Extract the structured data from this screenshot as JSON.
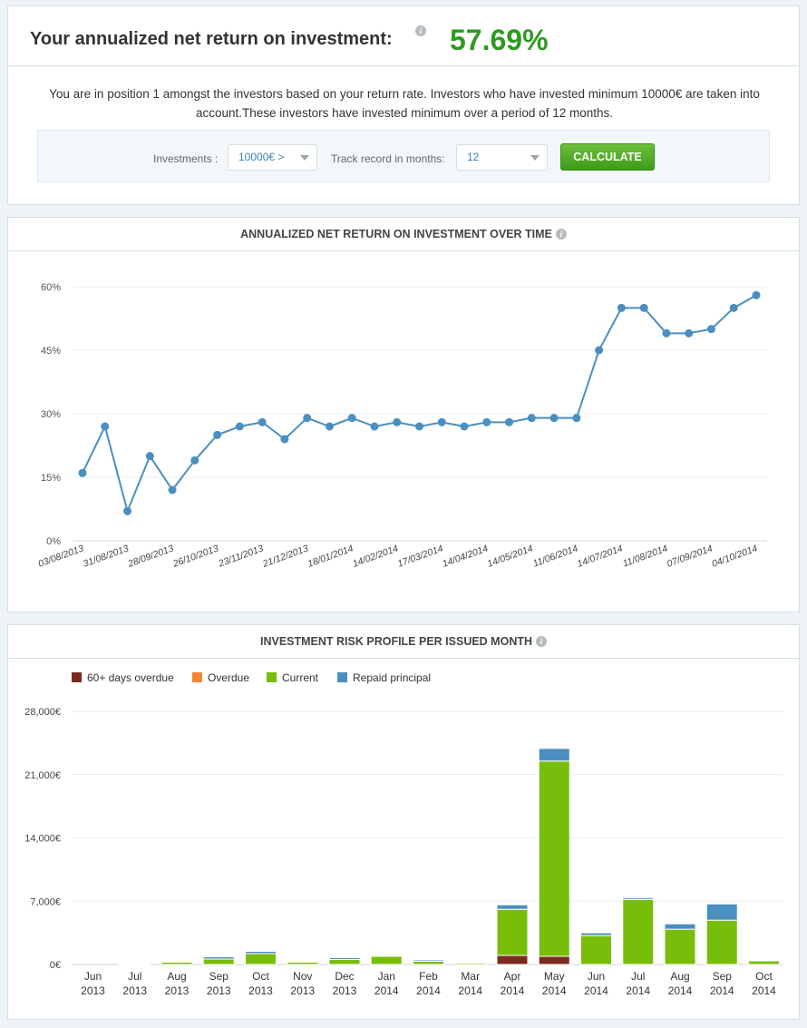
{
  "summary": {
    "title": "Your annualized net return on investment:",
    "info_icon": "info-icon",
    "return_value": "57.69%",
    "description": "You are in position 1 amongst the investors based on your return rate. Investors who have invested minimum 10000€ are taken into account.These investors have invested minimum over a period of 12 months.",
    "investments_label": "Investments :",
    "investments_value": "10000€ >",
    "track_label": "Track record in months:",
    "track_value": "12",
    "calculate_label": "CALCULATE"
  },
  "colors": {
    "line": "#4a8fc0",
    "green_value": "#2e9a1f",
    "overdue60": "#7b2a1e",
    "overdue": "#f58532",
    "current": "#77bd0a",
    "repaid": "#4a8fc0"
  },
  "chart_data": [
    {
      "type": "line",
      "title": "ANNUALIZED NET RETURN ON INVESTMENT OVER TIME",
      "y_ticks": [
        "0%",
        "15%",
        "30%",
        "45%",
        "60%"
      ],
      "ylim": [
        0,
        60
      ],
      "x_tick_labels": [
        "03/08/2013",
        "31/08/2013",
        "28/09/2013",
        "26/10/2013",
        "23/11/2013",
        "21/12/2013",
        "18/01/2014",
        "14/02/2014",
        "17/03/2014",
        "14/04/2014",
        "14/05/2014",
        "11/06/2014",
        "14/07/2014",
        "11/08/2014",
        "07/09/2014",
        "04/10/2014"
      ],
      "values": [
        16,
        27,
        7,
        20,
        12,
        19,
        25,
        27,
        28,
        24,
        29,
        27,
        29,
        27,
        28,
        27,
        28,
        27,
        28,
        28,
        29,
        29,
        29,
        45,
        55,
        55,
        49,
        49,
        50,
        55,
        58
      ],
      "grid": true
    },
    {
      "type": "bar",
      "stacked": true,
      "title": "INVESTMENT RISK PROFILE PER ISSUED MONTH",
      "legend": [
        "60+ days overdue",
        "Overdue",
        "Current",
        "Repaid principal"
      ],
      "legend_position": "top-left",
      "y_ticks": [
        "0€",
        "7,000€",
        "14,000€",
        "21,000€",
        "28,000€"
      ],
      "ylim": [
        0,
        28000
      ],
      "categories": [
        [
          "Jun",
          "2013"
        ],
        [
          "Jul",
          "2013"
        ],
        [
          "Aug",
          "2013"
        ],
        [
          "Sep",
          "2013"
        ],
        [
          "Oct",
          "2013"
        ],
        [
          "Nov",
          "2013"
        ],
        [
          "Dec",
          "2013"
        ],
        [
          "Jan",
          "2014"
        ],
        [
          "Feb",
          "2014"
        ],
        [
          "Mar",
          "2014"
        ],
        [
          "Apr",
          "2014"
        ],
        [
          "May",
          "2014"
        ],
        [
          "Jun",
          "2014"
        ],
        [
          "Jul",
          "2014"
        ],
        [
          "Aug",
          "2014"
        ],
        [
          "Sep",
          "2014"
        ],
        [
          "Oct",
          "2014"
        ]
      ],
      "series": [
        {
          "name": "60+ days overdue",
          "values": [
            0,
            0,
            0,
            0,
            0,
            0,
            0,
            0,
            0,
            0,
            1000,
            900,
            0,
            0,
            0,
            0,
            0
          ]
        },
        {
          "name": "Overdue",
          "values": [
            0,
            0,
            0,
            0,
            0,
            0,
            0,
            0,
            0,
            0,
            0,
            0,
            0,
            0,
            0,
            0,
            0
          ]
        },
        {
          "name": "Current",
          "values": [
            0,
            100,
            250,
            600,
            1200,
            250,
            550,
            900,
            350,
            150,
            5100,
            21600,
            3200,
            7200,
            3900,
            4900,
            400
          ]
        },
        {
          "name": "Repaid principal",
          "values": [
            0,
            50,
            100,
            250,
            250,
            100,
            200,
            0,
            150,
            0,
            500,
            1400,
            300,
            200,
            600,
            1800,
            0
          ]
        }
      ],
      "grid": true
    }
  ]
}
